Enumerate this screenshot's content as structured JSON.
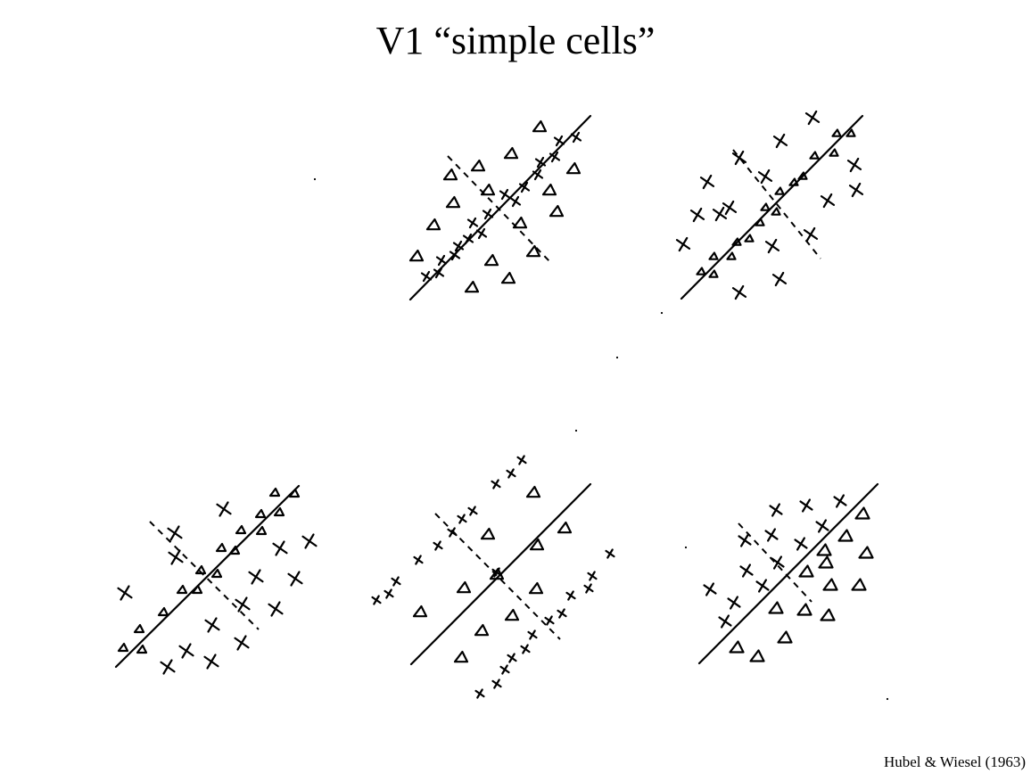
{
  "title": "V1 “simple cells”",
  "citation": "Hubel & Wiesel (1963)",
  "legend_symbols": {
    "excitatory": "x-mark",
    "inhibitory": "triangle-mark"
  }
}
